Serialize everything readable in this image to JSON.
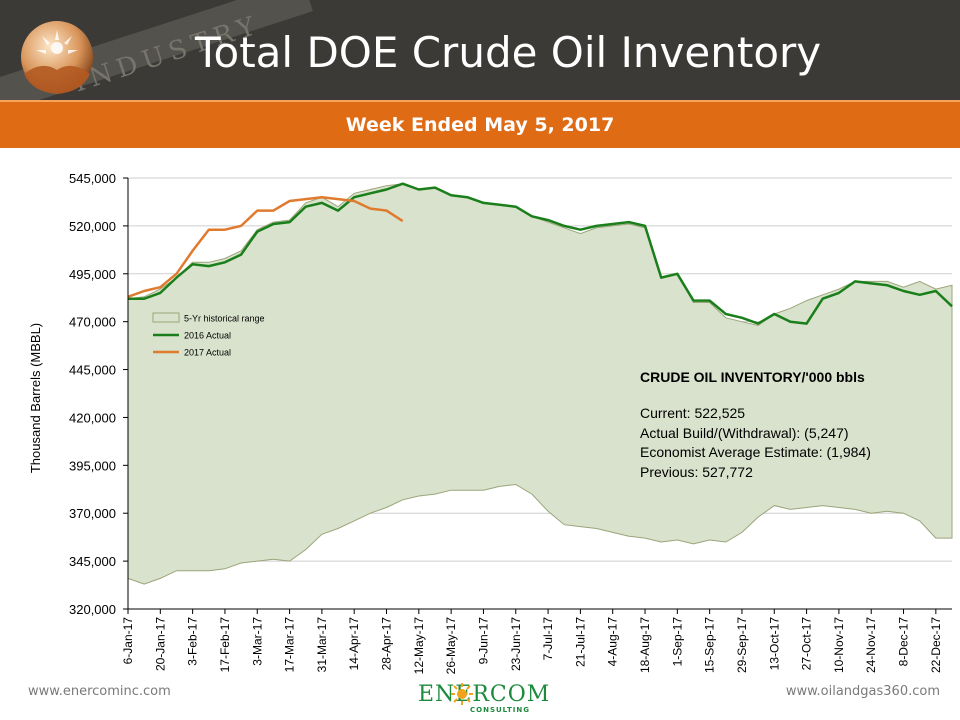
{
  "header": {
    "title": "Total DOE Crude Oil Inventory",
    "subtitle": "Week Ended May 5, 2017",
    "background_text": "INDUSTRY",
    "colors": {
      "header_bg": "#3b3a37",
      "banner_orange": "#df6b15"
    }
  },
  "info_box": {
    "heading": "CRUDE OIL INVENTORY/'000 bbls",
    "lines": [
      "Current: 522,525",
      "Actual Build/(Withdrawal):  (5,247)",
      "Economist Average Estimate: (1,984)",
      "Previous: 527,772"
    ]
  },
  "footer": {
    "left_link": "www.enercominc.com",
    "right_link": "www.oilandgas360.com",
    "logo_text": "ENERCOM",
    "logo_sub": "CONSULTING"
  },
  "chart_data": {
    "type": "line",
    "ylabel": "Thousand  Barrels (MBBL)",
    "xlabel": "",
    "ylim": [
      320000,
      545000
    ],
    "yticks": [
      320000,
      345000,
      370000,
      395000,
      420000,
      445000,
      470000,
      495000,
      520000,
      545000
    ],
    "ytick_labels": [
      "320,000",
      "345,000",
      "370,000",
      "395,000",
      "420,000",
      "445,000",
      "470,000",
      "495,000",
      "520,000",
      "545,000"
    ],
    "xtick_labels": [
      "6-Jan-17",
      "20-Jan-17",
      "3-Feb-17",
      "17-Feb-17",
      "3-Mar-17",
      "17-Mar-17",
      "31-Mar-17",
      "14-Apr-17",
      "28-Apr-17",
      "12-May-17",
      "26-May-17",
      "9-Jun-17",
      "23-Jun-17",
      "7-Jul-17",
      "21-Jul-17",
      "4-Aug-17",
      "18-Aug-17",
      "1-Sep-17",
      "15-Sep-17",
      "29-Sep-17",
      "13-Oct-17",
      "27-Oct-17",
      "10-Nov-17",
      "24-Nov-17",
      "8-Dec-17",
      "22-Dec-17"
    ],
    "grid": "horizontal",
    "legend_placement": "center-left",
    "series": [
      {
        "name": "5-Yr historical range",
        "kind": "range",
        "color": "#d9e2cc",
        "stroke": "#9aa57a",
        "upper": [
          482000,
          483000,
          487000,
          493000,
          501000,
          501000,
          503000,
          507000,
          518000,
          522000,
          523000,
          532000,
          535000,
          530000,
          537000,
          539000,
          541000,
          542000,
          539000,
          540000,
          536000,
          535000,
          532000,
          531000,
          530000,
          525000,
          522000,
          519000,
          516000,
          519000,
          520000,
          521000,
          519000,
          493000,
          495000,
          480000,
          480000,
          472000,
          470000,
          468000,
          474000,
          477000,
          481000,
          484000,
          487000,
          491000,
          491000,
          491000,
          488000,
          491000,
          487000,
          489000
        ],
        "lower": [
          336000,
          333000,
          336000,
          340000,
          340000,
          340000,
          341000,
          344000,
          345000,
          346000,
          345000,
          351000,
          359000,
          362000,
          366000,
          370000,
          373000,
          377000,
          379000,
          380000,
          382000,
          382000,
          382000,
          384000,
          385000,
          380000,
          371000,
          364000,
          363000,
          362000,
          360000,
          358000,
          357000,
          355000,
          356000,
          354000,
          356000,
          355000,
          360000,
          368000,
          374000,
          372000,
          373000,
          374000,
          373000,
          372000,
          370000,
          371000,
          370000,
          366000,
          357000,
          357000
        ]
      },
      {
        "name": "2016 Actual",
        "kind": "line",
        "color": "#1a7f1a",
        "values": [
          482000,
          482000,
          485000,
          493000,
          500000,
          499000,
          501000,
          505000,
          517000,
          521000,
          522000,
          530000,
          532000,
          528000,
          535000,
          537000,
          539000,
          542000,
          539000,
          540000,
          536000,
          535000,
          532000,
          531000,
          530000,
          525000,
          523000,
          520000,
          518000,
          520000,
          521000,
          522000,
          520000,
          493000,
          495000,
          481000,
          481000,
          474000,
          472000,
          469000,
          474000,
          470000,
          469000,
          482000,
          485000,
          491000,
          490000,
          489000,
          486000,
          484000,
          486000,
          478000
        ]
      },
      {
        "name": "2017 Actual",
        "kind": "line",
        "color": "#e07a2e",
        "values": [
          483000,
          486000,
          488000,
          495000,
          507000,
          518000,
          518000,
          520000,
          528000,
          528000,
          533000,
          534000,
          535000,
          534000,
          533000,
          529000,
          528000,
          522525
        ]
      }
    ]
  }
}
